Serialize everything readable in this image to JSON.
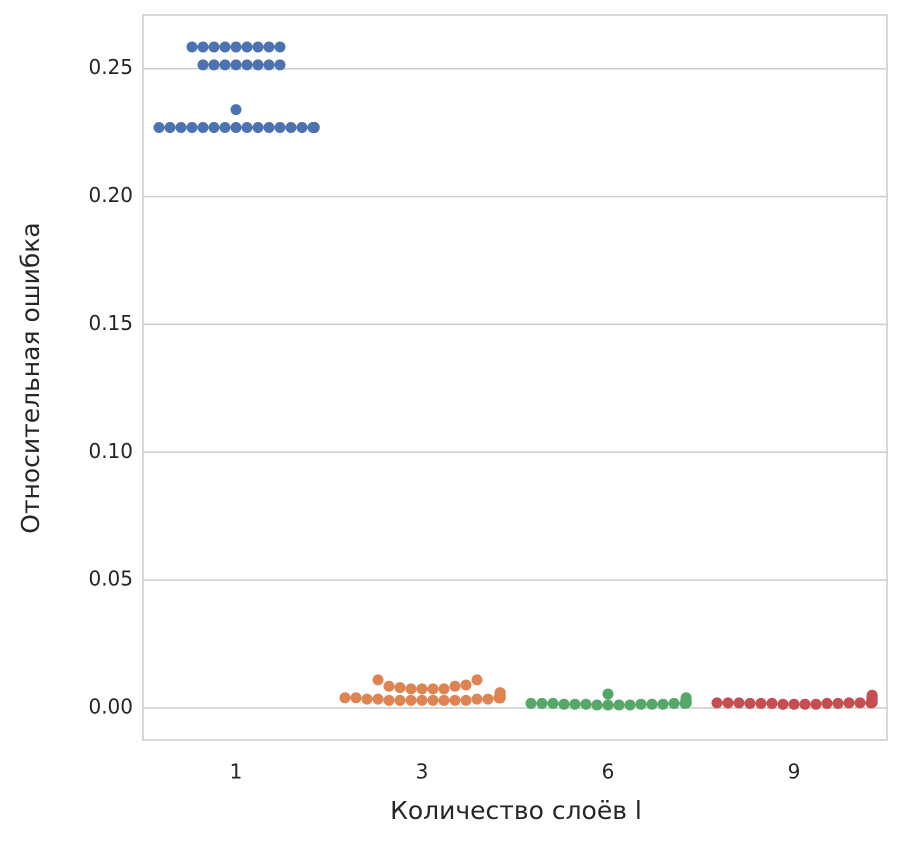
{
  "chart_data": {
    "type": "swarm",
    "ylabel": "Относительная ошибка",
    "xlabel": "Количество слоёв l",
    "categories": [
      "1",
      "3",
      "6",
      "9"
    ],
    "colors": [
      "#4c72b0",
      "#dd8452",
      "#55a868",
      "#c44e52"
    ],
    "values": [
      [
        0.227,
        0.227,
        0.227,
        0.227,
        0.227,
        0.227,
        0.227,
        0.227,
        0.227,
        0.227,
        0.227,
        0.227,
        0.227,
        0.227,
        0.227,
        0.227,
        0.227,
        0.227,
        0.227,
        0.227,
        0.234,
        0.2515,
        0.2515,
        0.2515,
        0.2515,
        0.2515,
        0.2515,
        0.2515,
        0.2515,
        0.2585,
        0.2585,
        0.2585,
        0.2585,
        0.2585,
        0.2585,
        0.2585,
        0.2585,
        0.2585
      ],
      [
        0.003,
        0.003,
        0.003,
        0.003,
        0.003,
        0.003,
        0.003,
        0.003,
        0.0035,
        0.0035,
        0.0035,
        0.0035,
        0.004,
        0.004,
        0.004,
        0.004,
        0.004,
        0.004,
        0.0045,
        0.0045,
        0.005,
        0.0055,
        0.006,
        0.006,
        0.0075,
        0.0075,
        0.0075,
        0.0075,
        0.008,
        0.0085,
        0.0085,
        0.009,
        0.011,
        0.011
      ],
      [
        0.0012,
        0.0012,
        0.0012,
        0.0012,
        0.0015,
        0.0015,
        0.0015,
        0.0015,
        0.0015,
        0.0015,
        0.0018,
        0.0018,
        0.0018,
        0.0018,
        0.0018,
        0.002,
        0.002,
        0.002,
        0.002,
        0.002,
        0.0022,
        0.0025,
        0.0025,
        0.003,
        0.0035,
        0.004,
        0.0055
      ],
      [
        0.0015,
        0.0015,
        0.0015,
        0.0015,
        0.0018,
        0.0018,
        0.0018,
        0.0018,
        0.0018,
        0.002,
        0.002,
        0.002,
        0.002,
        0.002,
        0.002,
        0.0022,
        0.0022,
        0.0025,
        0.0025,
        0.003,
        0.003,
        0.0035,
        0.004,
        0.0045,
        0.005
      ]
    ],
    "ylim": [
      -0.0125,
      0.271
    ],
    "yticks": [
      {
        "value": 0,
        "label": "0.00"
      },
      0.05,
      {
        "value": 0.1,
        "label": "0.10"
      },
      0.15,
      {
        "value": 0.2,
        "label": "0.20"
      },
      0.25
    ],
    "grid": true
  }
}
